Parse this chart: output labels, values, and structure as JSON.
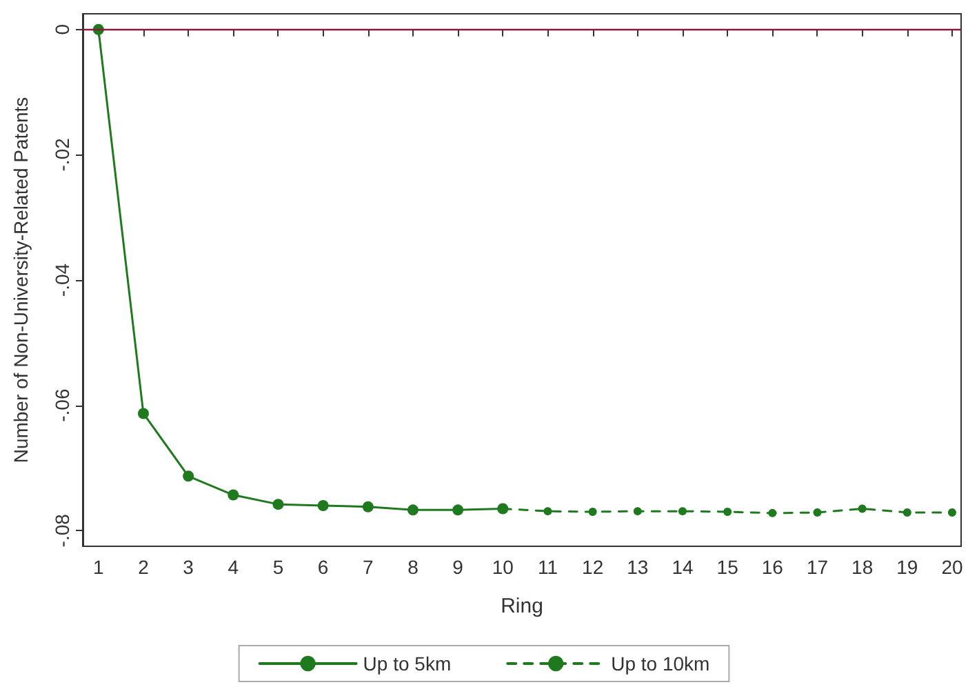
{
  "chart_data": {
    "type": "line",
    "xlabel": "Ring",
    "ylabel": "Number of Non-University-Related Patents",
    "xlim": [
      0.65,
      20.2
    ],
    "xticks": [
      1,
      2,
      3,
      4,
      5,
      6,
      7,
      8,
      9,
      10,
      11,
      12,
      13,
      14,
      15,
      16,
      17,
      18,
      19,
      20
    ],
    "ylim": [
      -0.0825,
      0.0025
    ],
    "yticks": [
      {
        "value": 0,
        "label": "0"
      },
      {
        "value": -0.02,
        "label": "-.02"
      },
      {
        "value": -0.04,
        "label": "-.04"
      },
      {
        "value": -0.06,
        "label": "-.06"
      },
      {
        "value": -0.08,
        "label": "-.08"
      }
    ],
    "series": [
      {
        "name": "Up to 5km",
        "color": "#1f7a1f",
        "line_style": "solid",
        "x": [
          1,
          2,
          3,
          4,
          5,
          6,
          7,
          8,
          9,
          10
        ],
        "values": [
          0,
          -0.0613,
          -0.0713,
          -0.0743,
          -0.0758,
          -0.076,
          -0.0762,
          -0.0767,
          -0.0767,
          -0.0765
        ]
      },
      {
        "name": "Up to 10km",
        "color": "#1f7a1f",
        "line_style": "dashed",
        "x": [
          10,
          11,
          12,
          13,
          14,
          15,
          16,
          17,
          18,
          19,
          20
        ],
        "values": [
          -0.0765,
          -0.0769,
          -0.077,
          -0.0769,
          -0.0769,
          -0.077,
          -0.0772,
          -0.0771,
          -0.0765,
          -0.0771,
          -0.0771
        ]
      }
    ],
    "ref_lines": [
      {
        "axis": "y",
        "value": 0,
        "color": "#8b1a3a"
      }
    ],
    "marker": "circle",
    "grid": false,
    "legend": "bottom"
  }
}
